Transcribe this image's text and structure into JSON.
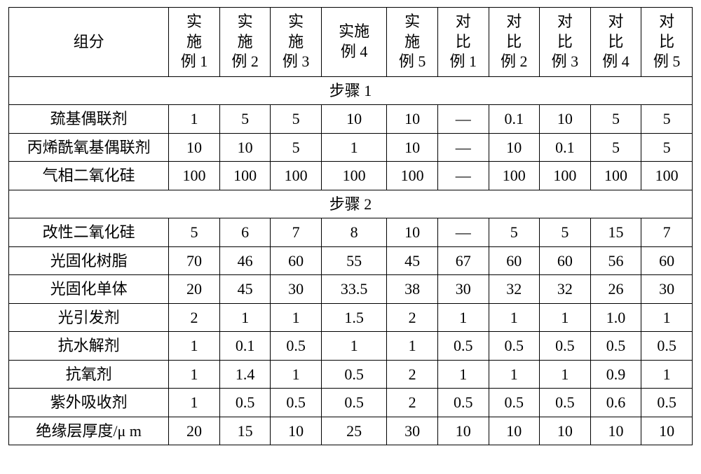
{
  "table": {
    "type": "table",
    "colors": {
      "border": "#000000",
      "text": "#000000",
      "background": "#ffffff"
    },
    "font": {
      "family": "SimSun",
      "size_pt": 16
    },
    "column_widths_pct": [
      22,
      7,
      7,
      7,
      9,
      7,
      7,
      7,
      7,
      7,
      7
    ],
    "header_row_label": "组分",
    "col_headers": [
      [
        "实",
        "施",
        "例 1"
      ],
      [
        "实",
        "施",
        "例 2"
      ],
      [
        "实",
        "施",
        "例 3"
      ],
      [
        "实施",
        "例 4"
      ],
      [
        "实",
        "施",
        "例 5"
      ],
      [
        "对",
        "比",
        "例 1"
      ],
      [
        "对",
        "比",
        "例 2"
      ],
      [
        "对",
        "比",
        "例 3"
      ],
      [
        "对",
        "比",
        "例 4"
      ],
      [
        "对",
        "比",
        "例 5"
      ]
    ],
    "sections": [
      {
        "title": "步骤 1",
        "rows": [
          {
            "label": "巯基偶联剂",
            "cells": [
              "1",
              "5",
              "5",
              "10",
              "10",
              "—",
              "0.1",
              "10",
              "5",
              "5"
            ]
          },
          {
            "label": "丙烯酰氧基偶联剂",
            "cells": [
              "10",
              "10",
              "5",
              "1",
              "10",
              "—",
              "10",
              "0.1",
              "5",
              "5"
            ]
          },
          {
            "label": "气相二氧化硅",
            "cells": [
              "100",
              "100",
              "100",
              "100",
              "100",
              "—",
              "100",
              "100",
              "100",
              "100"
            ]
          }
        ]
      },
      {
        "title": "步骤 2",
        "rows": [
          {
            "label": "改性二氧化硅",
            "cells": [
              "5",
              "6",
              "7",
              "8",
              "10",
              "—",
              "5",
              "5",
              "15",
              "7"
            ]
          },
          {
            "label": "光固化树脂",
            "cells": [
              "70",
              "46",
              "60",
              "55",
              "45",
              "67",
              "60",
              "60",
              "56",
              "60"
            ]
          },
          {
            "label": "光固化单体",
            "cells": [
              "20",
              "45",
              "30",
              "33.5",
              "38",
              "30",
              "32",
              "32",
              "26",
              "30"
            ]
          },
          {
            "label": "光引发剂",
            "cells": [
              "2",
              "1",
              "1",
              "1.5",
              "2",
              "1",
              "1",
              "1",
              "1.0",
              "1"
            ]
          },
          {
            "label": "抗水解剂",
            "cells": [
              "1",
              "0.1",
              "0.5",
              "1",
              "1",
              "0.5",
              "0.5",
              "0.5",
              "0.5",
              "0.5"
            ]
          },
          {
            "label": "抗氧剂",
            "cells": [
              "1",
              "1.4",
              "1",
              "0.5",
              "2",
              "1",
              "1",
              "1",
              "0.9",
              "1"
            ]
          },
          {
            "label": "紫外吸收剂",
            "cells": [
              "1",
              "0.5",
              "0.5",
              "0.5",
              "2",
              "0.5",
              "0.5",
              "0.5",
              "0.6",
              "0.5"
            ]
          },
          {
            "label": "绝缘层厚度/μ m",
            "cells": [
              "20",
              "15",
              "10",
              "25",
              "30",
              "10",
              "10",
              "10",
              "10",
              "10"
            ]
          }
        ]
      }
    ]
  }
}
